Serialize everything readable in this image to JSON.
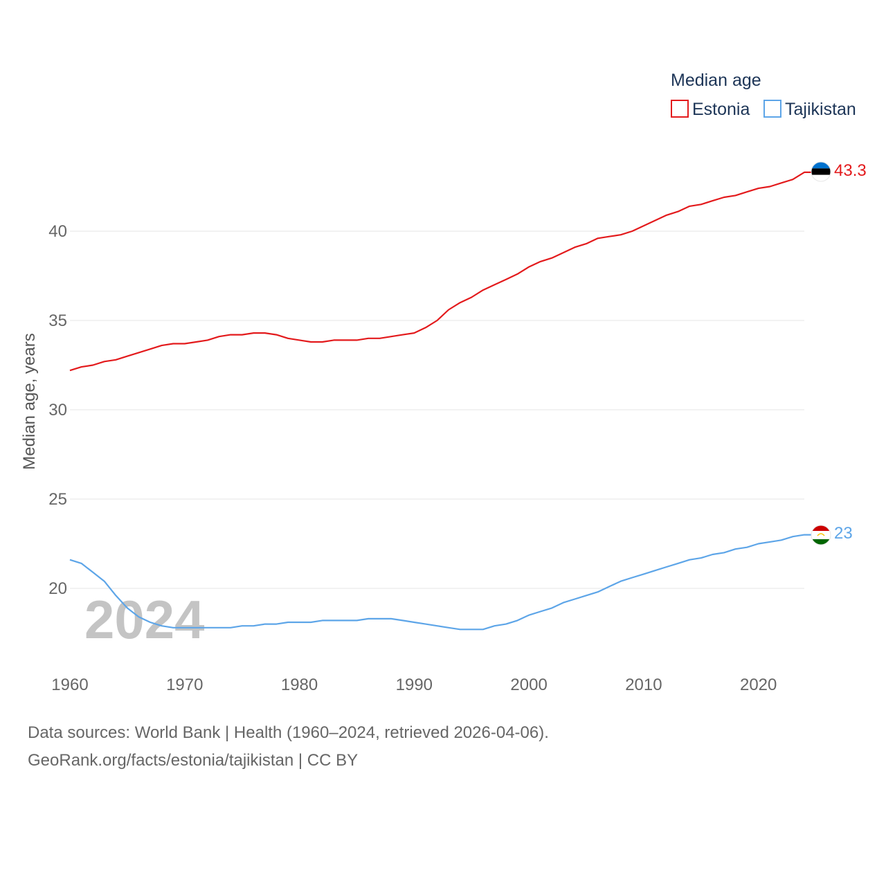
{
  "chart_data": {
    "type": "line",
    "legend_title": "Median age",
    "ylabel": "Median age, years",
    "xlabel": "",
    "ylim": [
      16,
      45
    ],
    "xlim": [
      1960,
      2024
    ],
    "y_ticks": [
      20,
      25,
      30,
      35,
      40
    ],
    "x_ticks": [
      1960,
      1970,
      1980,
      1990,
      2000,
      2010,
      2020
    ],
    "legend_position": "top-right",
    "grid": true,
    "current_year": "2024",
    "x": [
      1960,
      1961,
      1962,
      1963,
      1964,
      1965,
      1966,
      1967,
      1968,
      1969,
      1970,
      1971,
      1972,
      1973,
      1974,
      1975,
      1976,
      1977,
      1978,
      1979,
      1980,
      1981,
      1982,
      1983,
      1984,
      1985,
      1986,
      1987,
      1988,
      1989,
      1990,
      1991,
      1992,
      1993,
      1994,
      1995,
      1996,
      1997,
      1998,
      1999,
      2000,
      2001,
      2002,
      2003,
      2004,
      2005,
      2006,
      2007,
      2008,
      2009,
      2010,
      2011,
      2012,
      2013,
      2014,
      2015,
      2016,
      2017,
      2018,
      2019,
      2020,
      2021,
      2022,
      2023,
      2024
    ],
    "series": [
      {
        "name": "Estonia",
        "color": "#e31a1c",
        "end_label": "43.3",
        "flag": "estonia-flag",
        "values": [
          32.2,
          32.4,
          32.5,
          32.7,
          32.8,
          33.0,
          33.2,
          33.4,
          33.6,
          33.7,
          33.7,
          33.8,
          33.9,
          34.1,
          34.2,
          34.2,
          34.3,
          34.3,
          34.2,
          34.0,
          33.9,
          33.8,
          33.8,
          33.9,
          33.9,
          33.9,
          34.0,
          34.0,
          34.1,
          34.2,
          34.3,
          34.6,
          35.0,
          35.6,
          36.0,
          36.3,
          36.7,
          37.0,
          37.3,
          37.6,
          38.0,
          38.3,
          38.5,
          38.8,
          39.1,
          39.3,
          39.6,
          39.7,
          39.8,
          40.0,
          40.3,
          40.6,
          40.9,
          41.1,
          41.4,
          41.5,
          41.7,
          41.9,
          42.0,
          42.2,
          42.4,
          42.5,
          42.7,
          42.9,
          43.3
        ]
      },
      {
        "name": "Tajikistan",
        "color": "#5da5e8",
        "end_label": "23",
        "flag": "tajikistan-flag",
        "values": [
          21.6,
          21.4,
          20.9,
          20.4,
          19.6,
          18.9,
          18.4,
          18.1,
          17.9,
          17.8,
          17.8,
          17.8,
          17.8,
          17.8,
          17.8,
          17.9,
          17.9,
          18.0,
          18.0,
          18.1,
          18.1,
          18.1,
          18.2,
          18.2,
          18.2,
          18.2,
          18.3,
          18.3,
          18.3,
          18.2,
          18.1,
          18.0,
          17.9,
          17.8,
          17.7,
          17.7,
          17.7,
          17.9,
          18.0,
          18.2,
          18.5,
          18.7,
          18.9,
          19.2,
          19.4,
          19.6,
          19.8,
          20.1,
          20.4,
          20.6,
          20.8,
          21.0,
          21.2,
          21.4,
          21.6,
          21.7,
          21.9,
          22.0,
          22.2,
          22.3,
          22.5,
          22.6,
          22.7,
          22.9,
          23.0
        ]
      }
    ]
  },
  "footer": {
    "line1": "Data sources: World Bank | Health (1960–2024, retrieved 2026-04-06).",
    "line2": "GeoRank.org/facts/estonia/tajikistan | CC BY"
  }
}
